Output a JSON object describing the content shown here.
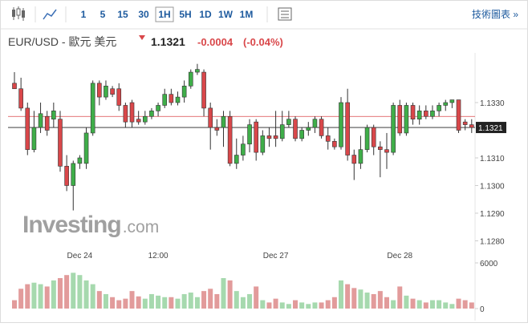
{
  "toolbar": {
    "intervals": [
      "1",
      "5",
      "15",
      "30",
      "1H",
      "5H",
      "1D",
      "1W",
      "1M"
    ],
    "active": 4,
    "link": "技術圖表 »"
  },
  "header": {
    "symbol": "EUR/USD - 歐元 美元",
    "last": 1.1321,
    "change": -0.0004,
    "change_pct": "(-0.04%)"
  },
  "chart_data": {
    "type": "candlestick",
    "watermark": {
      "brand": "Investing",
      "suffix": ".com"
    },
    "categories": [
      null,
      null,
      null,
      null,
      null,
      null,
      null,
      null,
      null,
      null,
      "Dec 24",
      null,
      null,
      null,
      null,
      null,
      null,
      null,
      null,
      null,
      null,
      null,
      "12:00",
      null,
      null,
      null,
      null,
      null,
      null,
      null,
      null,
      null,
      null,
      null,
      null,
      null,
      null,
      null,
      null,
      null,
      "Dec 27",
      null,
      null,
      null,
      null,
      null,
      null,
      null,
      null,
      null,
      null,
      null,
      null,
      null,
      null,
      null,
      null,
      null,
      null,
      "Dec 28",
      null,
      null,
      null,
      null,
      null,
      null,
      null,
      null,
      null,
      null,
      null
    ],
    "open": [
      1.1337,
      1.1335,
      1.1328,
      1.1313,
      1.1321,
      1.1325,
      1.1324,
      1.1324,
      1.1307,
      1.13,
      1.1308,
      1.1308,
      1.1319,
      1.1337,
      1.1332,
      1.1335,
      1.1335,
      1.1329,
      1.133,
      1.1324,
      1.1323,
      1.1325,
      1.1327,
      1.1329,
      1.1333,
      1.133,
      1.1332,
      1.1336,
      1.1341,
      1.1341,
      1.1328,
      1.1321,
      1.1321,
      1.1325,
      1.1308,
      1.1311,
      1.1315,
      1.1323,
      1.1312,
      1.1318,
      1.1318,
      1.1317,
      1.1322,
      1.1324,
      1.1317,
      1.132,
      1.1321,
      1.1324,
      1.1318,
      1.1316,
      1.1314,
      1.133,
      1.1311,
      1.1308,
      1.1313,
      1.1321,
      1.1314,
      1.1313,
      1.1312,
      1.1329,
      1.1319,
      1.1329,
      1.1324,
      1.1327,
      1.1325,
      1.1327,
      1.1329,
      1.133,
      1.1331,
      1.1323,
      1.1322
    ],
    "high": [
      1.1341,
      1.1339,
      1.133,
      1.1327,
      1.133,
      1.1327,
      1.133,
      1.1327,
      1.1311,
      1.1309,
      1.1311,
      1.1321,
      1.1338,
      1.1338,
      1.1338,
      1.1336,
      1.1337,
      1.133,
      1.1331,
      1.1327,
      1.1327,
      1.1328,
      1.133,
      1.1335,
      1.1335,
      1.1334,
      1.1338,
      1.1342,
      1.1344,
      1.1342,
      1.133,
      1.1324,
      1.1327,
      1.1327,
      1.1317,
      1.1318,
      1.1324,
      1.1324,
      1.132,
      1.1321,
      1.1327,
      1.1327,
      1.1327,
      1.1325,
      1.1321,
      1.1323,
      1.1325,
      1.1325,
      1.1321,
      1.1317,
      1.1332,
      1.1335,
      1.1313,
      1.1318,
      1.1322,
      1.1322,
      1.1316,
      1.1319,
      1.133,
      1.1331,
      1.133,
      1.133,
      1.1329,
      1.1329,
      1.1329,
      1.133,
      1.1331,
      1.1331,
      1.1331,
      1.1324,
      1.1324
    ],
    "low": [
      1.1335,
      1.1327,
      1.1311,
      1.1312,
      1.1319,
      1.1318,
      1.1321,
      1.1305,
      1.1298,
      1.1291,
      1.1306,
      1.1306,
      1.1318,
      1.1329,
      1.1331,
      1.1332,
      1.1327,
      1.1321,
      1.1321,
      1.1322,
      1.1322,
      1.1324,
      1.1325,
      1.1328,
      1.1329,
      1.1329,
      1.133,
      1.1335,
      1.134,
      1.1325,
      1.1313,
      1.1318,
      1.1314,
      1.1307,
      1.1306,
      1.1309,
      1.1312,
      1.1309,
      1.1311,
      1.1314,
      1.1314,
      1.1316,
      1.1321,
      1.1316,
      1.1316,
      1.1318,
      1.1319,
      1.1317,
      1.1313,
      1.1313,
      1.1313,
      1.1309,
      1.1302,
      1.1306,
      1.1312,
      1.1311,
      1.1303,
      1.1306,
      1.1311,
      1.1318,
      1.1318,
      1.1322,
      1.1322,
      1.1324,
      1.1324,
      1.1325,
      1.1327,
      1.1328,
      1.1319,
      1.132,
      1.1319
    ],
    "close": [
      1.1335,
      1.1328,
      1.1313,
      1.1321,
      1.1326,
      1.132,
      1.1327,
      1.1307,
      1.13,
      1.1308,
      1.131,
      1.1319,
      1.1337,
      1.1332,
      1.1336,
      1.1333,
      1.1329,
      1.1323,
      1.1323,
      1.1323,
      1.1325,
      1.1327,
      1.1329,
      1.1333,
      1.133,
      1.1332,
      1.1336,
      1.1341,
      1.1342,
      1.1328,
      1.1321,
      1.132,
      1.1325,
      1.1308,
      1.1311,
      1.1315,
      1.1322,
      1.1312,
      1.1318,
      1.1317,
      1.1317,
      1.1322,
      1.1324,
      1.1317,
      1.132,
      1.1321,
      1.1324,
      1.1318,
      1.1316,
      1.1314,
      1.133,
      1.1311,
      1.1308,
      1.1313,
      1.1321,
      1.1314,
      1.1313,
      1.1312,
      1.1329,
      1.1319,
      1.1329,
      1.1324,
      1.1327,
      1.1325,
      1.1327,
      1.1329,
      1.133,
      1.1331,
      1.132,
      1.1322,
      1.1321
    ],
    "volume": [
      1100,
      2600,
      3200,
      3400,
      3200,
      2900,
      3700,
      4000,
      4400,
      4700,
      4400,
      3700,
      3200,
      2300,
      1900,
      1500,
      1100,
      1300,
      2300,
      1600,
      1300,
      1900,
      1700,
      1500,
      1500,
      1300,
      1900,
      2100,
      1500,
      2300,
      2600,
      1900,
      4000,
      3700,
      2300,
      1500,
      1900,
      2900,
      1100,
      800,
      1300,
      800,
      600,
      1100,
      800,
      600,
      800,
      800,
      1100,
      1500,
      3700,
      3200,
      2700,
      2500,
      2100,
      1900,
      2300,
      1500,
      1100,
      2900,
      1700,
      1300,
      1100,
      800,
      1100,
      1100,
      800,
      600,
      1300,
      1100,
      800
    ],
    "up_color": "#3fae49",
    "down_color": "#d9474a",
    "up_volume_color": "#a6d9ae",
    "down_volume_color": "#e29b9b",
    "ylim": [
      1.1276,
      1.1356
    ],
    "yticks": [
      {
        "value": 1.133,
        "label": "1.1330"
      },
      {
        "value": 1.131,
        "label": "1.1310"
      },
      {
        "value": 1.13,
        "label": "1.1300"
      },
      {
        "value": 1.129,
        "label": "1.1290"
      },
      {
        "value": 1.128,
        "label": "1.1280"
      }
    ],
    "vlim": [
      0,
      6000
    ],
    "vticks": [
      0,
      6000
    ],
    "prev_close": 1.1325,
    "last_price": 1.1321
  }
}
